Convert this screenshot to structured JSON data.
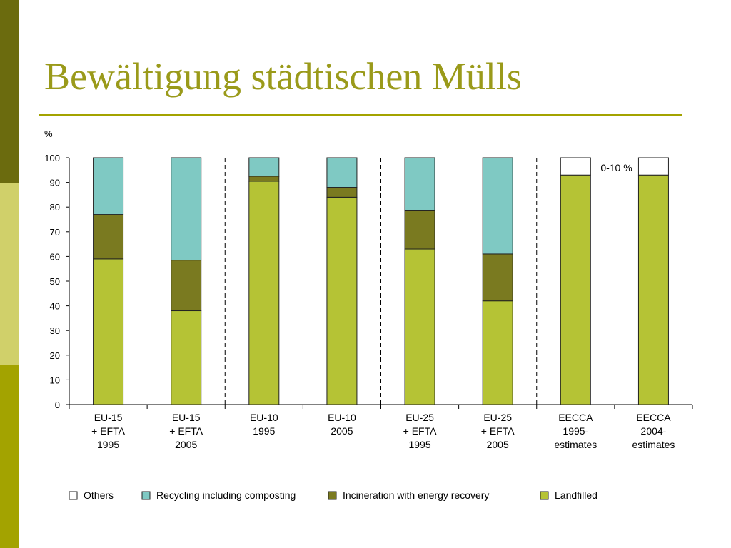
{
  "slide": {
    "title": "Bewältigung städtischen Mülls"
  },
  "colors": {
    "brand": "#a3a300",
    "band_dark": "#6b6b0e",
    "band_light": "#d0d06a",
    "title": "#9a9a1a"
  },
  "chart_data": {
    "type": "bar",
    "stacked": true,
    "ylabel": "%",
    "ylim": [
      0,
      100
    ],
    "yticks": [
      0,
      10,
      20,
      30,
      40,
      50,
      60,
      70,
      80,
      90,
      100
    ],
    "grid": false,
    "legend_position": "bottom",
    "categories": [
      [
        "EU-15",
        "+ EFTA",
        "1995"
      ],
      [
        "EU-15",
        "+ EFTA",
        "2005"
      ],
      [
        "EU-10",
        "1995"
      ],
      [
        "EU-10",
        "2005"
      ],
      [
        "EU-25",
        "+ EFTA",
        "1995"
      ],
      [
        "EU-25",
        "+ EFTA",
        "2005"
      ],
      [
        "EECCA",
        "1995-",
        "estimates"
      ],
      [
        "EECCA",
        "2004-",
        "estimates"
      ]
    ],
    "group_separators_after": [
      1,
      3,
      5
    ],
    "series": [
      {
        "name": "Landfilled",
        "color": "#b5c335",
        "values": [
          59,
          38,
          90.5,
          84,
          63,
          42,
          93,
          93
        ]
      },
      {
        "name": "Incineration with energy recovery",
        "color": "#7a7a20",
        "values": [
          18,
          20.5,
          2,
          4,
          15.5,
          19,
          0,
          0
        ]
      },
      {
        "name": "Recycling including composting",
        "color": "#7fc9c3",
        "values": [
          23,
          41.5,
          7.5,
          12,
          21.5,
          39,
          0,
          0
        ]
      },
      {
        "name": "Others",
        "color": "#ffffff",
        "values": [
          0,
          0,
          0,
          0,
          0,
          0,
          7,
          7
        ]
      }
    ],
    "legend_order": [
      "Others",
      "Recycling including composting",
      "Incineration with energy recovery",
      "Landfilled"
    ],
    "annotations": [
      {
        "text": "0-10 %",
        "category_index": 6,
        "y": 96
      }
    ]
  }
}
